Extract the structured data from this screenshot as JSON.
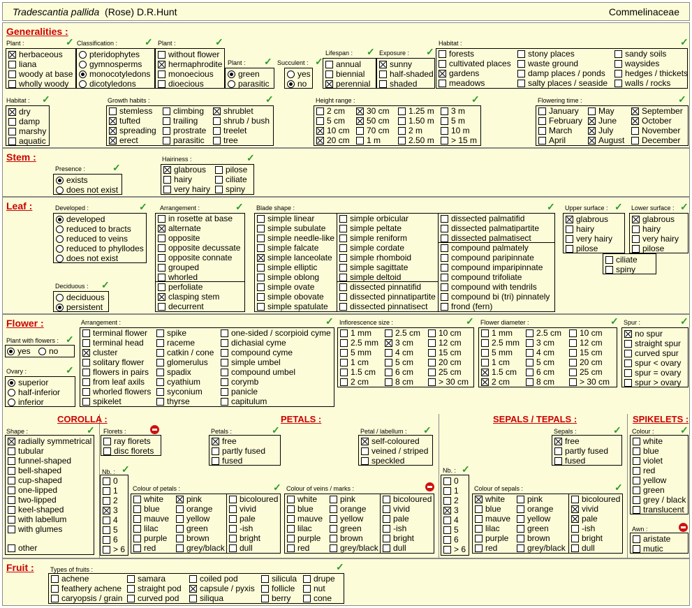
{
  "header": {
    "species": "Tradescantia pallida",
    "author": "(Rose) D.R.Hunt",
    "family": "Commelinaceae"
  },
  "sections": {
    "generalities": "Generalities :",
    "stem": "Stem :",
    "leaf": "Leaf :",
    "flower": "Flower :",
    "fruit": "Fruit :"
  },
  "subsections": {
    "corolla": "COROLLA :",
    "petals": "PETALS :",
    "sepals": "SEPALS / TEPALS :",
    "spikelets": "SPIKELETS :"
  },
  "labels": {
    "plant": "Plant :",
    "classification": "Classification :",
    "plant2": "Plant :",
    "plant3": "Plant :",
    "succulent": "Succulent :",
    "lifespan": "Lifespan :",
    "exposure": "Exposure :",
    "habitat": "Habitat :",
    "habitat2": "Habitat :",
    "growth": "Growth habits :",
    "height": "Height range :",
    "flowering": "Flowering time :",
    "presence": "Presence :",
    "hairiness": "Hairiness :",
    "developed": "Developed :",
    "arrangement": "Arrangement :",
    "blade": "Blade shape :",
    "upper": "Upper surface :",
    "lower": "Lower surface :",
    "deciduous": "Deciduous :",
    "plantflowers": "Plant with flowers :",
    "ovary": "Ovary :",
    "farrangement": "Arrangement :",
    "inflsize": "Inflorescence size :",
    "flowerdiam": "Flower diameter :",
    "spur": "Spur :",
    "shape": "Shape :",
    "florets": "Florets :",
    "petals": "Petals :",
    "labellum": "Petal / labellum :",
    "sepals": "Sepals :",
    "colour": "Colour :",
    "awn": "Awn :",
    "nb1": "Nb. :",
    "nb2": "Nb. :",
    "cpetals": "Colour of petals :",
    "cveins": "Colour of veins / marks :",
    "csepals": "Colour of sepals :",
    "fruits": "Types of fruits :"
  },
  "groups": {
    "g_plant": [
      [
        "herbaceous",
        1
      ],
      [
        "liana",
        0
      ],
      [
        "woody at base",
        0
      ],
      [
        "wholly woody",
        0
      ]
    ],
    "g_class": [
      [
        "pteridophytes",
        0
      ],
      [
        "gymnosperms",
        0
      ],
      [
        "monocotyledons",
        1
      ],
      [
        "dicotyledons",
        0
      ]
    ],
    "g_plant2": [
      [
        "without flower",
        0
      ],
      [
        "hermaphrodite",
        1
      ],
      [
        "monoecious",
        0
      ],
      [
        "dioecious",
        0
      ]
    ],
    "g_plant3": [
      [
        "green",
        1
      ],
      [
        "parasitic",
        0
      ]
    ],
    "g_succ": [
      [
        "yes",
        0
      ],
      [
        "no",
        1
      ]
    ],
    "g_life": [
      [
        "annual",
        0
      ],
      [
        "biennial",
        0
      ],
      [
        "perennial",
        1
      ]
    ],
    "g_expo": [
      [
        "sunny",
        1
      ],
      [
        "half-shaded",
        0
      ],
      [
        "shaded",
        0
      ]
    ],
    "g_hab1": [
      [
        "forests",
        0
      ],
      [
        "cultivated places",
        0
      ],
      [
        "gardens",
        1
      ],
      [
        "meadows",
        0
      ]
    ],
    "g_hab2": [
      [
        "stony places",
        0
      ],
      [
        "waste ground",
        0
      ],
      [
        "damp places / ponds",
        0
      ],
      [
        "salty places / seaside",
        0
      ]
    ],
    "g_hab3": [
      [
        "sandy soils",
        0
      ],
      [
        "waysides",
        0
      ],
      [
        "hedges / thickets",
        0
      ],
      [
        "walls / rocks",
        0
      ]
    ],
    "g_habitat2": [
      [
        "dry",
        1
      ],
      [
        "damp",
        0
      ],
      [
        "marshy",
        0
      ],
      [
        "aquatic",
        0
      ]
    ],
    "g_gr1": [
      [
        "stemless",
        0
      ],
      [
        "tufted",
        1
      ],
      [
        "spreading",
        1
      ],
      [
        "erect",
        1
      ]
    ],
    "g_gr2": [
      [
        "climbing",
        0
      ],
      [
        "trailing",
        0
      ],
      [
        "prostrate",
        0
      ],
      [
        "parasitic",
        0
      ]
    ],
    "g_gr3": [
      [
        "shrublet",
        1
      ],
      [
        "shrub / bush",
        0
      ],
      [
        "treelet",
        0
      ],
      [
        "tree",
        0
      ]
    ],
    "g_h1": [
      [
        "2 cm",
        0
      ],
      [
        "5 cm",
        0
      ],
      [
        "10 cm",
        1
      ],
      [
        "20 cm",
        1
      ]
    ],
    "g_h2": [
      [
        "30 cm",
        1
      ],
      [
        "50 cm",
        1
      ],
      [
        "70 cm",
        0
      ],
      [
        "1 m",
        0
      ]
    ],
    "g_h3": [
      [
        "1.25 m",
        0
      ],
      [
        "1.50 m",
        0
      ],
      [
        "2 m",
        0
      ],
      [
        "2.50 m",
        0
      ]
    ],
    "g_h4": [
      [
        "3 m",
        0
      ],
      [
        "5 m",
        0
      ],
      [
        "10 m",
        0
      ],
      [
        "> 15 m",
        0
      ]
    ],
    "g_f1": [
      [
        "January",
        0
      ],
      [
        "February",
        0
      ],
      [
        "March",
        0
      ],
      [
        "April",
        0
      ]
    ],
    "g_f2": [
      [
        "May",
        0
      ],
      [
        "June",
        1
      ],
      [
        "July",
        1
      ],
      [
        "August",
        1
      ]
    ],
    "g_f3": [
      [
        "September",
        1
      ],
      [
        "October",
        1
      ],
      [
        "November",
        0
      ],
      [
        "December",
        0
      ]
    ],
    "g_pres": [
      [
        "exists",
        1
      ],
      [
        "does not exist",
        0
      ]
    ],
    "g_hair1": [
      [
        "glabrous",
        1
      ],
      [
        "hairy",
        0
      ],
      [
        "very hairy",
        0
      ]
    ],
    "g_hair2": [
      [
        "pilose",
        0
      ],
      [
        "ciliate",
        0
      ],
      [
        "spiny",
        0
      ]
    ],
    "g_dev": [
      [
        "developed",
        1
      ],
      [
        "reduced to bracts",
        0
      ],
      [
        "reduced to veins",
        0
      ],
      [
        "reduced to phyllodes",
        0
      ],
      [
        "does not exist",
        0
      ]
    ],
    "g_arr1": [
      [
        "in rosette at base",
        0
      ],
      [
        "alternate",
        1
      ],
      [
        "opposite",
        0
      ],
      [
        "opposite decussate",
        0
      ],
      [
        "opposite connate",
        0
      ],
      [
        "grouped",
        0
      ],
      [
        "whorled",
        0
      ]
    ],
    "g_arr2": [
      [
        "perfoliate",
        0
      ],
      [
        "clasping stem",
        1
      ],
      [
        "decurrent",
        0
      ]
    ],
    "g_bl1": [
      [
        "simple linear",
        0
      ],
      [
        "simple subulate",
        0
      ],
      [
        "simple needle-like",
        0
      ],
      [
        "simple falcate",
        0
      ],
      [
        "simple lanceolate",
        1
      ],
      [
        "simple elliptic",
        0
      ],
      [
        "simple oblong",
        0
      ],
      [
        "simple ovate",
        0
      ],
      [
        "simple obovate",
        0
      ],
      [
        "simple spatulate",
        0
      ]
    ],
    "g_bl2": [
      [
        "simple orbicular",
        0
      ],
      [
        "simple peltate",
        0
      ],
      [
        "simple reniform",
        0
      ],
      [
        "simple cordate",
        0
      ],
      [
        "simple rhomboid",
        0
      ],
      [
        "simple sagittate",
        0
      ],
      [
        "simple deltoid",
        0
      ]
    ],
    "g_bl3": [
      [
        "dissected pinnatifid",
        0
      ],
      [
        "dissected pinnatipartite",
        0
      ],
      [
        "dissected pinnatisect",
        0
      ]
    ],
    "g_bl4": [
      [
        "dissected palmatifid",
        0
      ],
      [
        "dissected palmatipartite",
        0
      ],
      [
        "dissected palmatisect",
        0
      ]
    ],
    "g_bl5": [
      [
        "compound palmately",
        0
      ],
      [
        "compound paripinnate",
        0
      ],
      [
        "compound imparipinnate",
        0
      ],
      [
        "compound trifoliate",
        0
      ],
      [
        "compound with tendrils",
        0
      ],
      [
        "compound bi (tri) pinnately",
        0
      ],
      [
        "frond  (fern)",
        0
      ]
    ],
    "g_up": [
      [
        "glabrous",
        1
      ],
      [
        "hairy",
        0
      ],
      [
        "very hairy",
        0
      ],
      [
        "pilose",
        0
      ]
    ],
    "g_low": [
      [
        "glabrous",
        1
      ],
      [
        "hairy",
        0
      ],
      [
        "very hairy",
        0
      ],
      [
        "pilose",
        0
      ]
    ],
    "g_cil": [
      [
        "ciliate",
        0
      ],
      [
        "spiny",
        0
      ]
    ],
    "g_decid": [
      [
        "deciduous",
        0
      ],
      [
        "persistent",
        1
      ]
    ],
    "g_pwf": [
      [
        "yes",
        1
      ],
      [
        "no",
        0
      ]
    ],
    "g_ovary": [
      [
        "superior",
        1
      ],
      [
        "half-inferior",
        0
      ],
      [
        "inferior",
        0
      ]
    ],
    "g_fa1": [
      [
        "terminal flower",
        0
      ],
      [
        "terminal head",
        0
      ],
      [
        "cluster",
        1
      ],
      [
        "solitary flower",
        0
      ],
      [
        "flowers in pairs",
        0
      ],
      [
        "from leaf axils",
        0
      ],
      [
        "whorled flowers",
        0
      ],
      [
        "spikelet",
        0
      ]
    ],
    "g_fa2": [
      [
        "spike",
        0
      ],
      [
        "raceme",
        0
      ],
      [
        "catkin / cone",
        0
      ],
      [
        "glomerulus",
        0
      ],
      [
        "spadix",
        0
      ],
      [
        "cyathium",
        0
      ],
      [
        "syconium",
        0
      ],
      [
        "thyrse",
        0
      ]
    ],
    "g_fa3": [
      [
        "one-sided / scorpioid cyme",
        0
      ],
      [
        "dichasial cyme",
        0
      ],
      [
        "compound cyme",
        0
      ],
      [
        "simple umbel",
        0
      ],
      [
        "compound umbel",
        0
      ],
      [
        "corymb",
        0
      ],
      [
        "panicle",
        0
      ],
      [
        "capitulum",
        0
      ]
    ],
    "g_is1": [
      [
        "1 mm",
        0
      ],
      [
        "2.5 mm",
        0
      ],
      [
        "5 mm",
        0
      ],
      [
        "1 cm",
        0
      ],
      [
        "1.5 cm",
        0
      ],
      [
        "2 cm",
        0
      ]
    ],
    "g_is2": [
      [
        "2.5 cm",
        0
      ],
      [
        "3 cm",
        1
      ],
      [
        "4 cm",
        0
      ],
      [
        "5 cm",
        0
      ],
      [
        "6 cm",
        0
      ],
      [
        "8 cm",
        0
      ]
    ],
    "g_is3": [
      [
        "10 cm",
        0
      ],
      [
        "12 cm",
        0
      ],
      [
        "15 cm",
        0
      ],
      [
        "20 cm",
        0
      ],
      [
        "25 cm",
        0
      ],
      [
        "> 30 cm",
        0
      ]
    ],
    "g_fd1": [
      [
        "1 mm",
        0
      ],
      [
        "2.5 mm",
        0
      ],
      [
        "5 mm",
        0
      ],
      [
        "1 cm",
        0
      ],
      [
        "1.5 cm",
        1
      ],
      [
        "2 cm",
        1
      ]
    ],
    "g_fd2": [
      [
        "2.5 cm",
        0
      ],
      [
        "3 cm",
        0
      ],
      [
        "4 cm",
        0
      ],
      [
        "5 cm",
        0
      ],
      [
        "6 cm",
        0
      ],
      [
        "8 cm",
        0
      ]
    ],
    "g_fd3": [
      [
        "10 cm",
        0
      ],
      [
        "12 cm",
        0
      ],
      [
        "15 cm",
        0
      ],
      [
        "20 cm",
        0
      ],
      [
        "25 cm",
        0
      ],
      [
        "> 30 cm",
        0
      ]
    ],
    "g_spur": [
      [
        "no spur",
        1
      ],
      [
        "straight spur",
        0
      ],
      [
        "curved spur",
        0
      ],
      [
        "spur < ovary",
        0
      ],
      [
        "spur = ovary",
        0
      ],
      [
        "spur > ovary",
        0
      ]
    ],
    "g_shape": [
      [
        "radially symmetrical",
        1
      ],
      [
        "tubular",
        0
      ],
      [
        "funnel-shaped",
        0
      ],
      [
        "bell-shaped",
        0
      ],
      [
        "cup-shaped",
        0
      ],
      [
        "one-lipped",
        0
      ],
      [
        "two-lipped",
        0
      ],
      [
        "keel-shaped",
        0
      ],
      [
        "with labellum",
        0
      ],
      [
        "with glumes",
        0
      ]
    ],
    "g_other": [
      [
        "other",
        0
      ]
    ],
    "g_florets": [
      [
        "ray florets",
        0
      ],
      [
        "disc florets",
        0
      ]
    ],
    "g_nb1": [
      [
        "0",
        0
      ],
      [
        "1",
        0
      ],
      [
        "2",
        0
      ],
      [
        "3",
        1
      ],
      [
        "4",
        0
      ],
      [
        "5",
        0
      ],
      [
        "6",
        0
      ],
      [
        "> 6",
        0
      ]
    ],
    "g_cp1": [
      [
        "white",
        0
      ],
      [
        "blue",
        0
      ],
      [
        "mauve",
        0
      ],
      [
        "lilac",
        0
      ],
      [
        "purple",
        0
      ],
      [
        "red",
        0
      ]
    ],
    "g_cp2": [
      [
        "pink",
        1
      ],
      [
        "orange",
        0
      ],
      [
        "yellow",
        0
      ],
      [
        "green",
        0
      ],
      [
        "brown",
        0
      ],
      [
        "grey/black",
        0
      ]
    ],
    "g_cp3": [
      [
        "bicoloured",
        0
      ],
      [
        "vivid",
        0
      ],
      [
        "pale",
        0
      ],
      [
        "-ish",
        0
      ],
      [
        "bright",
        0
      ],
      [
        "dull",
        0
      ]
    ],
    "g_pet": [
      [
        "free",
        1
      ],
      [
        "partly fused",
        0
      ],
      [
        "fused",
        0
      ]
    ],
    "g_lab": [
      [
        "self-coloured",
        1
      ],
      [
        "veined / striped",
        0
      ],
      [
        "speckled",
        0
      ]
    ],
    "g_cv1": [
      [
        "white",
        0
      ],
      [
        "blue",
        0
      ],
      [
        "mauve",
        0
      ],
      [
        "lilac",
        0
      ],
      [
        "purple",
        0
      ],
      [
        "red",
        0
      ]
    ],
    "g_cv2": [
      [
        "pink",
        0
      ],
      [
        "orange",
        0
      ],
      [
        "yellow",
        0
      ],
      [
        "green",
        0
      ],
      [
        "brown",
        0
      ],
      [
        "grey/black",
        0
      ]
    ],
    "g_cv3": [
      [
        "bicoloured",
        0
      ],
      [
        "vivid",
        0
      ],
      [
        "pale",
        0
      ],
      [
        "-ish",
        0
      ],
      [
        "bright",
        0
      ],
      [
        "dull",
        0
      ]
    ],
    "g_nb2": [
      [
        "0",
        0
      ],
      [
        "1",
        0
      ],
      [
        "2",
        0
      ],
      [
        "3",
        1
      ],
      [
        "4",
        0
      ],
      [
        "5",
        0
      ],
      [
        "6",
        0
      ],
      [
        "> 6",
        0
      ]
    ],
    "g_sep": [
      [
        "free",
        1
      ],
      [
        "partly fused",
        0
      ],
      [
        "fused",
        0
      ]
    ],
    "g_cs1": [
      [
        "white",
        1
      ],
      [
        "blue",
        0
      ],
      [
        "mauve",
        0
      ],
      [
        "lilac",
        0
      ],
      [
        "purple",
        0
      ],
      [
        "red",
        0
      ]
    ],
    "g_cs2": [
      [
        "pink",
        0
      ],
      [
        "orange",
        0
      ],
      [
        "yellow",
        0
      ],
      [
        "green",
        0
      ],
      [
        "brown",
        0
      ],
      [
        "grey/black",
        0
      ]
    ],
    "g_cs3": [
      [
        "bicoloured",
        0
      ],
      [
        "vivid",
        1
      ],
      [
        "pale",
        1
      ],
      [
        "-ish",
        0
      ],
      [
        "bright",
        0
      ],
      [
        "dull",
        0
      ]
    ],
    "g_col": [
      [
        "white",
        0
      ],
      [
        "blue",
        0
      ],
      [
        "violet",
        0
      ],
      [
        "red",
        0
      ],
      [
        "yellow",
        0
      ],
      [
        "green",
        0
      ],
      [
        "grey / black",
        0
      ],
      [
        "translucent",
        0
      ]
    ],
    "g_awn": [
      [
        "aristate",
        0
      ],
      [
        "mutic",
        0
      ]
    ],
    "g_fr1": [
      [
        "achene",
        0
      ],
      [
        "feathery achene",
        0
      ],
      [
        "caryopsis / grain",
        0
      ]
    ],
    "g_fr2": [
      [
        "samara",
        0
      ],
      [
        "straight pod",
        0
      ],
      [
        "curved pod",
        0
      ]
    ],
    "g_fr3": [
      [
        "coiled pod",
        0
      ],
      [
        "capsule / pyxis",
        1
      ],
      [
        "siliqua",
        0
      ]
    ],
    "g_fr4": [
      [
        "silicula",
        0
      ],
      [
        "follicle",
        0
      ],
      [
        "berry",
        0
      ]
    ],
    "g_fr5": [
      [
        "drupe",
        0
      ],
      [
        "nut",
        0
      ],
      [
        "cone",
        0
      ]
    ]
  },
  "colors": {
    "background": "#fcfcd8",
    "title_red": "#cc0000",
    "check_green": "#2a9a2a",
    "stop_red": "#d01010"
  }
}
